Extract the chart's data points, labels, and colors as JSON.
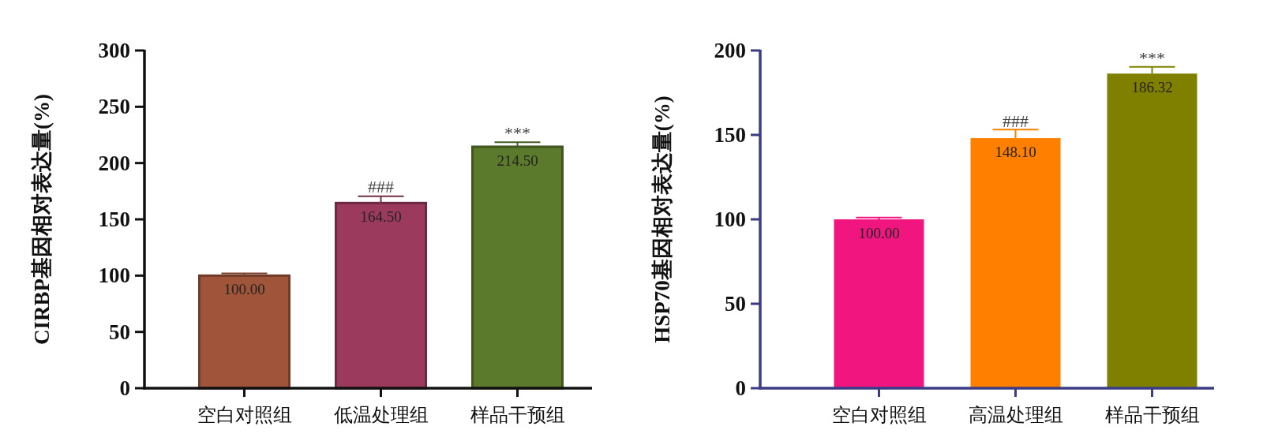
{
  "chart_data": [
    {
      "type": "bar",
      "ylabel": "CIRBP基因相对表达量(%)",
      "categories": [
        "空白对照组",
        "低温处理组",
        "样品干预组"
      ],
      "values": [
        100.0,
        164.5,
        214.5
      ],
      "colors": [
        "#a0553a",
        "#9c3a5e",
        "#5b7a2c"
      ],
      "errors": [
        2,
        6,
        4
      ],
      "value_labels": [
        "100.00",
        "164.50",
        "214.50"
      ],
      "ylim": [
        0,
        300
      ],
      "yticks": [
        0,
        50,
        100,
        150,
        200,
        250,
        300
      ],
      "annotations": [
        {
          "text": "###",
          "x": "低温处理组",
          "y": 171
        },
        {
          "text": "***",
          "x": "样品干预组",
          "y": 219
        }
      ]
    },
    {
      "type": "bar",
      "ylabel": "HSP70基因相对表达量(%)",
      "categories": [
        "空白对照组",
        "高温处理组",
        "样品干预组"
      ],
      "values": [
        100.0,
        148.1,
        186.32
      ],
      "colors": [
        "#f0157f",
        "#ff8000",
        "#808000"
      ],
      "errors": [
        1,
        5,
        4
      ],
      "value_labels": [
        "100.00",
        "148.10",
        "186.32"
      ],
      "ylim": [
        0,
        200
      ],
      "yticks": [
        0,
        50,
        100,
        150,
        200
      ],
      "annotations": [
        {
          "text": "###",
          "x": "高温处理组",
          "y": 153
        },
        {
          "text": "***",
          "x": "样品干预组",
          "y": 190
        }
      ]
    }
  ]
}
